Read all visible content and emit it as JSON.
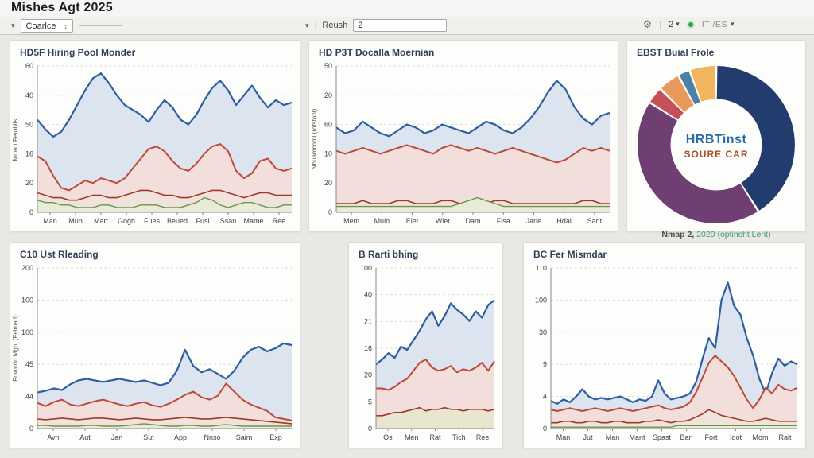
{
  "header": {
    "title": "Mishes Agt 2025"
  },
  "icons": {
    "collapse_chevron": "▾",
    "select_caret": "↕",
    "gear": "⚙",
    "zoom_caret": "▾",
    "items_caret": "▾"
  },
  "toolbar": {
    "view_select_label": "Coarlce",
    "refresh_label": "Reush",
    "refresh_value": "2",
    "zoom_value": "2",
    "items_label": "ITI/ES",
    "status_color": "#2e9e44"
  },
  "chart_data": [
    {
      "type": "area",
      "title": "HD5F Hiring Pool Monder",
      "ylabel": "Mdant Feroblist",
      "ylim": [
        0,
        60
      ],
      "y_ticks": [
        "60",
        "40",
        "50",
        "16",
        "20",
        "0"
      ],
      "x_labels": [
        "Man",
        "Mun",
        "Mart",
        "Gogh",
        "Fues",
        "Beued",
        "Fusi",
        "Ssan",
        "Mame",
        "Ree"
      ],
      "grid": true,
      "series": [
        {
          "name": "blue",
          "color": "#2d5fa0",
          "fill": "#dbe4ef",
          "w": 2.2,
          "values": [
            38,
            34,
            31,
            33,
            38,
            44,
            50,
            55,
            57,
            53,
            48,
            44,
            42,
            40,
            37,
            42,
            46,
            43,
            38,
            36,
            40,
            46,
            51,
            54,
            50,
            44,
            48,
            52,
            47,
            43,
            46,
            44,
            45
          ]
        },
        {
          "name": "red",
          "color": "#bf4936",
          "fill": "#f2dedb",
          "w": 2,
          "values": [
            23,
            21,
            15,
            10,
            9,
            11,
            13,
            12,
            14,
            13,
            12,
            14,
            18,
            22,
            26,
            27,
            25,
            21,
            18,
            17,
            20,
            24,
            27,
            28,
            25,
            17,
            14,
            16,
            21,
            22,
            18,
            17,
            18
          ]
        },
        {
          "name": "dark-red",
          "color": "#9e3a2b",
          "fill": "#f0e3dc",
          "w": 1.6,
          "values": [
            8,
            7,
            6,
            6,
            5,
            5,
            6,
            7,
            7,
            6,
            6,
            7,
            8,
            9,
            9,
            8,
            7,
            7,
            6,
            6,
            7,
            8,
            9,
            9,
            8,
            7,
            6,
            7,
            8,
            8,
            7,
            7,
            7
          ]
        },
        {
          "name": "green",
          "color": "#73914f",
          "fill": "#e6ecd7",
          "w": 1.4,
          "values": [
            5,
            4,
            4,
            3,
            3,
            2,
            2,
            2,
            3,
            3,
            2,
            2,
            2,
            3,
            3,
            3,
            2,
            2,
            2,
            3,
            4,
            6,
            5,
            3,
            2,
            3,
            4,
            4,
            3,
            2,
            2,
            3,
            3
          ]
        }
      ]
    },
    {
      "type": "area",
      "title": "HD P3T Docalla Moernian",
      "ylabel": "Nhuamcoml (rofsfonl)",
      "ylim": [
        0,
        50
      ],
      "y_ticks": [
        "50",
        "20",
        "60",
        "10",
        "20",
        "0"
      ],
      "x_labels": [
        "Mem",
        "Muin",
        "Eiet",
        "Wiet",
        "Dam",
        "Fisa",
        "Jane",
        "Hdai",
        "Sarit"
      ],
      "grid": true,
      "series": [
        {
          "name": "blue",
          "color": "#2d5fa0",
          "fill": "#dbe4ef",
          "w": 2.2,
          "values": [
            29,
            27,
            28,
            31,
            29,
            27,
            26,
            28,
            30,
            29,
            27,
            28,
            30,
            29,
            28,
            27,
            29,
            31,
            30,
            28,
            27,
            29,
            32,
            36,
            41,
            45,
            42,
            36,
            32,
            30,
            33,
            34
          ]
        },
        {
          "name": "red",
          "color": "#bf4936",
          "fill": "#f2dedb",
          "w": 2,
          "values": [
            21,
            20,
            21,
            22,
            21,
            20,
            21,
            22,
            23,
            22,
            21,
            20,
            22,
            23,
            22,
            21,
            22,
            21,
            20,
            21,
            22,
            21,
            20,
            19,
            18,
            17,
            18,
            20,
            22,
            21,
            22,
            21
          ]
        },
        {
          "name": "dark-red",
          "color": "#9e3a2b",
          "fill": "#f0e3dc",
          "w": 1.6,
          "values": [
            3,
            3,
            3,
            4,
            3,
            3,
            3,
            4,
            4,
            3,
            3,
            3,
            4,
            4,
            3,
            3,
            3,
            3,
            4,
            4,
            3,
            3,
            3,
            3,
            3,
            3,
            3,
            3,
            4,
            4,
            3,
            3
          ]
        },
        {
          "name": "green",
          "color": "#73914f",
          "fill": "#e6ecd7",
          "w": 1.4,
          "values": [
            2,
            2,
            2,
            2,
            2,
            2,
            2,
            2,
            2,
            2,
            2,
            2,
            2,
            2,
            3,
            4,
            5,
            4,
            3,
            2,
            2,
            2,
            2,
            2,
            2,
            2,
            2,
            2,
            2,
            2,
            2,
            2
          ]
        }
      ]
    },
    {
      "type": "donut",
      "title": "EBST Buial Frole",
      "center_line1": "HRBTinst",
      "center_color1": "#2a6da5",
      "center_line2": "SOURE CAR",
      "center_color2": "#a9512e",
      "caption_prefix": "Nmap 2,",
      "caption_rest": " 2020 (optinsht Lent)",
      "slices": [
        {
          "name": "navy",
          "color": "#223c6d",
          "value": 41
        },
        {
          "name": "purple",
          "color": "#6f3e72",
          "value": 43
        },
        {
          "name": "red",
          "color": "#c6505a",
          "value": 3.5
        },
        {
          "name": "orange",
          "color": "#e9995b",
          "value": 4.5
        },
        {
          "name": "steel-blue",
          "color": "#4c80a7",
          "value": 2.5
        },
        {
          "name": "amber",
          "color": "#f1b45f",
          "value": 5.5
        }
      ]
    },
    {
      "type": "area",
      "title": "C10 Ust Rleading",
      "ylabel": "Fovordo Mght (Felmad)",
      "ylim": [
        0,
        200
      ],
      "y_ticks": [
        "200",
        "100",
        "100",
        "45",
        "44",
        "0"
      ],
      "x_labels": [
        "Avn",
        "Aut",
        "Jan",
        "Sut",
        "App",
        "Nnso",
        "Saim",
        "Exp"
      ],
      "grid": true,
      "series": [
        {
          "name": "blue",
          "color": "#2d5fa0",
          "fill": "#dbe4ef",
          "w": 2.2,
          "values": [
            45,
            47,
            50,
            48,
            55,
            60,
            62,
            60,
            58,
            60,
            62,
            60,
            58,
            60,
            57,
            54,
            57,
            72,
            98,
            78,
            70,
            74,
            68,
            62,
            72,
            88,
            98,
            102,
            96,
            100,
            106,
            104
          ]
        },
        {
          "name": "red",
          "color": "#bf4936",
          "fill": "#f2dedb",
          "w": 2,
          "values": [
            32,
            28,
            33,
            36,
            30,
            28,
            31,
            34,
            36,
            33,
            30,
            28,
            31,
            33,
            29,
            27,
            31,
            36,
            42,
            46,
            39,
            36,
            41,
            56,
            46,
            36,
            30,
            26,
            22,
            14,
            12,
            10
          ]
        },
        {
          "name": "dark-red",
          "color": "#9e3a2b",
          "fill": "#f0e3dc",
          "w": 1.6,
          "values": [
            12,
            11,
            12,
            13,
            12,
            11,
            12,
            13,
            13,
            12,
            11,
            12,
            13,
            12,
            11,
            11,
            12,
            13,
            14,
            13,
            12,
            12,
            13,
            14,
            13,
            12,
            11,
            10,
            9,
            8,
            7,
            6
          ]
        },
        {
          "name": "green",
          "color": "#73914f",
          "fill": "#e6ecd7",
          "w": 1.4,
          "values": [
            4,
            4,
            3,
            3,
            3,
            3,
            4,
            4,
            3,
            3,
            3,
            4,
            5,
            6,
            5,
            4,
            3,
            3,
            4,
            4,
            3,
            3,
            4,
            5,
            4,
            3,
            3,
            3,
            3,
            3,
            3,
            3
          ]
        }
      ]
    },
    {
      "type": "area",
      "title": "B Rarti bhing",
      "ylabel": "",
      "ylim": [
        0,
        100
      ],
      "y_ticks": [
        "100",
        "40",
        "21",
        "16",
        "20",
        "5",
        "0"
      ],
      "x_labels": [
        "Os",
        "Men",
        "Rat",
        "Tich",
        "Ree"
      ],
      "grid": true,
      "series": [
        {
          "name": "blue",
          "color": "#2d5fa0",
          "fill": "#dbe4ef",
          "w": 2.2,
          "values": [
            40,
            43,
            47,
            44,
            51,
            49,
            55,
            61,
            68,
            73,
            64,
            70,
            78,
            74,
            71,
            67,
            73,
            69,
            77,
            80
          ]
        },
        {
          "name": "red",
          "color": "#bf4936",
          "fill": "#f2dedb",
          "w": 2,
          "values": [
            25,
            25,
            24,
            26,
            29,
            31,
            36,
            41,
            43,
            38,
            36,
            37,
            39,
            35,
            37,
            36,
            38,
            41,
            36,
            42
          ]
        },
        {
          "name": "dark-red",
          "color": "#9e3a2b",
          "fill": "#e9e6cf",
          "w": 1.6,
          "values": [
            8,
            8,
            9,
            10,
            10,
            11,
            12,
            13,
            11,
            12,
            12,
            13,
            12,
            12,
            11,
            12,
            12,
            12,
            11,
            12
          ]
        }
      ]
    },
    {
      "type": "area",
      "title": "BC Fer Mismdar",
      "ylabel": "",
      "ylim": [
        0,
        110
      ],
      "y_ticks": [
        "110",
        "100",
        "30",
        "9",
        "4",
        "0"
      ],
      "x_labels": [
        "Man",
        "Jut",
        "Man",
        "Mant",
        "Spast",
        "Ban",
        "Fort",
        "Idot",
        "Mom",
        "Rait"
      ],
      "grid": true,
      "series": [
        {
          "name": "blue",
          "color": "#2d5fa0",
          "fill": "#dbe4ef",
          "w": 2.2,
          "values": [
            19,
            17,
            20,
            18,
            22,
            27,
            22,
            20,
            21,
            20,
            21,
            22,
            20,
            18,
            20,
            19,
            22,
            33,
            24,
            20,
            21,
            22,
            24,
            32,
            48,
            62,
            55,
            88,
            100,
            84,
            78,
            62,
            50,
            34,
            24,
            38,
            48,
            43,
            46,
            44
          ]
        },
        {
          "name": "red",
          "color": "#bf4936",
          "fill": "#f2dedb",
          "w": 2,
          "values": [
            13,
            12,
            13,
            14,
            13,
            12,
            13,
            14,
            13,
            12,
            13,
            14,
            13,
            12,
            13,
            14,
            15,
            16,
            14,
            13,
            14,
            15,
            18,
            25,
            35,
            45,
            50,
            46,
            42,
            36,
            28,
            20,
            14,
            20,
            28,
            24,
            30,
            27,
            26,
            28
          ]
        },
        {
          "name": "dark-red",
          "color": "#9e3a2b",
          "fill": "#f0e3dc",
          "w": 1.6,
          "values": [
            4,
            4,
            5,
            5,
            4,
            4,
            5,
            5,
            4,
            4,
            5,
            5,
            4,
            4,
            4,
            5,
            5,
            6,
            5,
            4,
            5,
            5,
            6,
            8,
            10,
            13,
            11,
            9,
            8,
            7,
            6,
            5,
            5,
            6,
            7,
            6,
            5,
            5,
            5,
            5
          ]
        },
        {
          "name": "green",
          "color": "#73914f",
          "fill": "#e6ecd7",
          "w": 1.4,
          "values": [
            1,
            1,
            1,
            1,
            1,
            1,
            1,
            1,
            1,
            1,
            1,
            1,
            1,
            1,
            1,
            1,
            1,
            1,
            1,
            1,
            2,
            2,
            2,
            2,
            2,
            2,
            2,
            2,
            2,
            2,
            2,
            2,
            2,
            2,
            2,
            2,
            2,
            2,
            2,
            2
          ]
        }
      ]
    }
  ]
}
